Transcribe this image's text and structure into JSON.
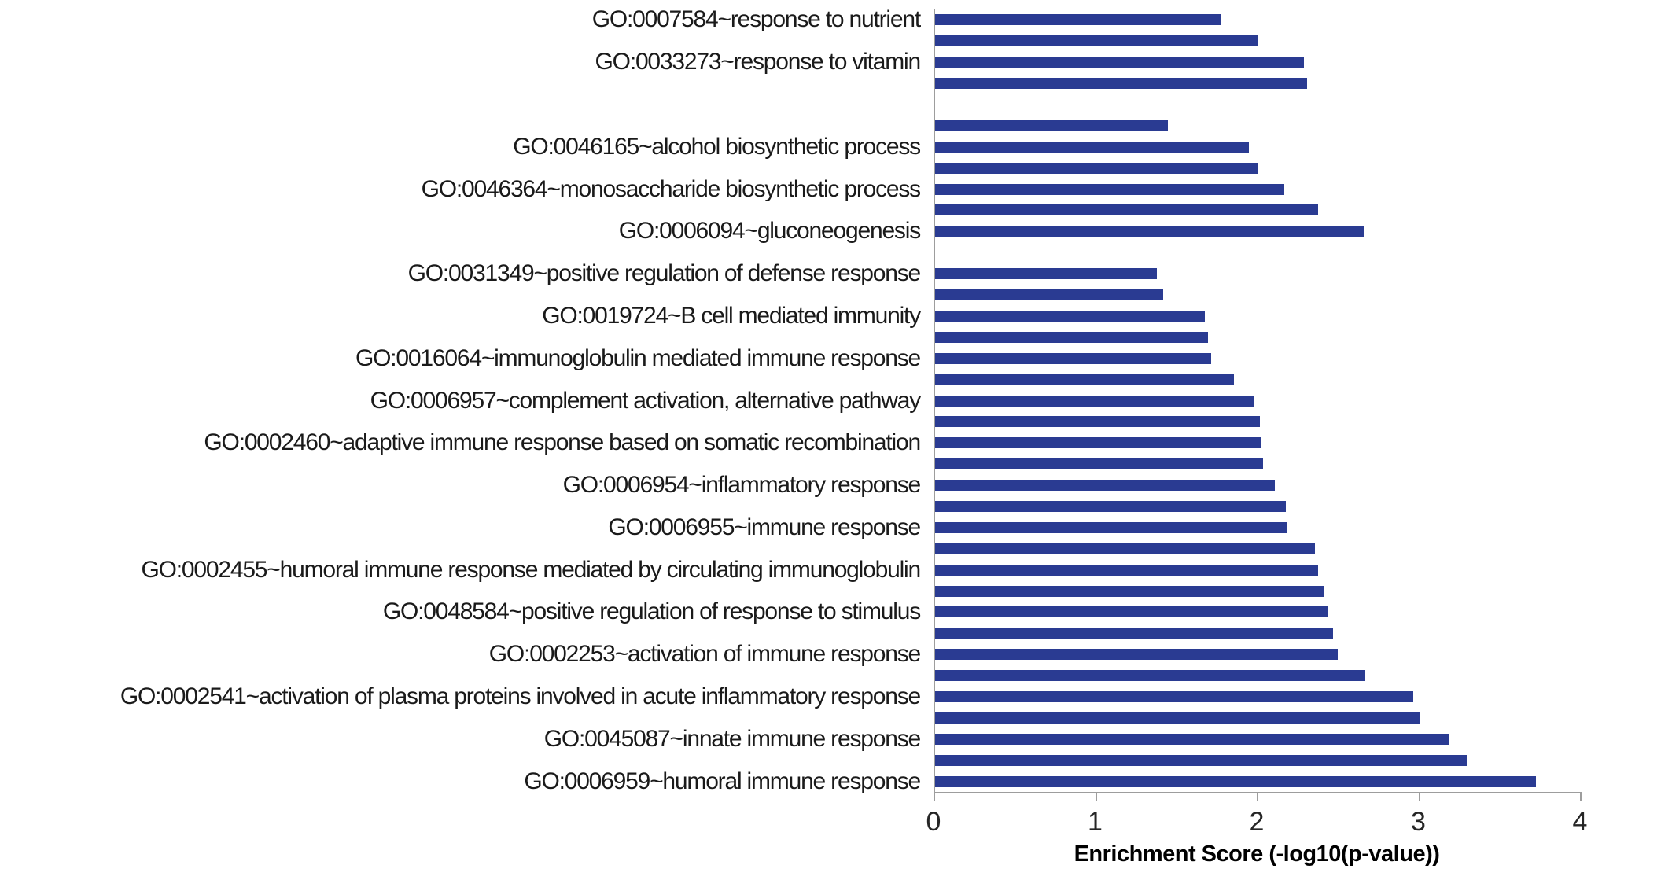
{
  "chart_data": {
    "type": "bar",
    "orientation": "horizontal",
    "title": "",
    "xlabel": "Enrichment Score (-log10(p-value))",
    "ylabel": "",
    "xlim": [
      0,
      4
    ],
    "x_ticks": [
      "0",
      "1",
      "2",
      "3",
      "4"
    ],
    "grid": false,
    "legend": null,
    "bar_color": "#2a3b92",
    "axis_color": "#9d9d9d",
    "rows": [
      {
        "label": "GO:0007584~response to nutrient",
        "value": 1.77
      },
      {
        "label": null,
        "value": 2.0
      },
      {
        "label": "GO:0033273~response to vitamin",
        "value": 2.28
      },
      {
        "label": null,
        "value": 2.3
      },
      {
        "spacer": true
      },
      {
        "label": null,
        "value": 1.44
      },
      {
        "label": "GO:0046165~alcohol biosynthetic process",
        "value": 1.94
      },
      {
        "label": null,
        "value": 2.0
      },
      {
        "label": "GO:0046364~monosaccharide biosynthetic process",
        "value": 2.16
      },
      {
        "label": null,
        "value": 2.37
      },
      {
        "label": "GO:0006094~gluconeogenesis",
        "value": 2.65
      },
      {
        "spacer": true
      },
      {
        "label": "GO:0031349~positive regulation of defense response",
        "value": 1.37
      },
      {
        "label": null,
        "value": 1.41
      },
      {
        "label": "GO:0019724~B cell mediated immunity",
        "value": 1.67
      },
      {
        "label": null,
        "value": 1.69
      },
      {
        "label": "GO:0016064~immunoglobulin mediated immune response",
        "value": 1.71
      },
      {
        "label": null,
        "value": 1.85
      },
      {
        "label": "GO:0006957~complement activation, alternative pathway",
        "value": 1.97
      },
      {
        "label": null,
        "value": 2.01
      },
      {
        "label": "GO:0002460~adaptive immune response based on somatic recombination",
        "value": 2.02
      },
      {
        "label": null,
        "value": 2.03
      },
      {
        "label": "GO:0006954~inflammatory response",
        "value": 2.1
      },
      {
        "label": null,
        "value": 2.17
      },
      {
        "label": "GO:0006955~immune response",
        "value": 2.18
      },
      {
        "label": null,
        "value": 2.35
      },
      {
        "label": "GO:0002455~humoral immune response mediated by circulating immunoglobulin",
        "value": 2.37
      },
      {
        "label": null,
        "value": 2.41
      },
      {
        "label": "GO:0048584~positive regulation of response to stimulus",
        "value": 2.43
      },
      {
        "label": null,
        "value": 2.46
      },
      {
        "label": "GO:0002253~activation of immune response",
        "value": 2.49
      },
      {
        "label": null,
        "value": 2.66
      },
      {
        "label": "GO:0002541~activation of plasma proteins involved in acute inflammatory response",
        "value": 2.96
      },
      {
        "label": null,
        "value": 3.0
      },
      {
        "label": "GO:0045087~innate immune response",
        "value": 3.18
      },
      {
        "label": null,
        "value": 3.29
      },
      {
        "label": "GO:0006959~humoral immune response",
        "value": 3.72
      }
    ]
  }
}
